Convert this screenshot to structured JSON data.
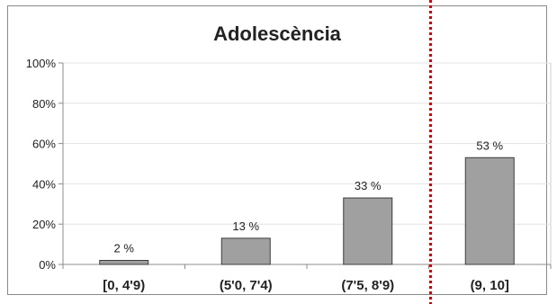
{
  "chart_data": {
    "type": "bar",
    "title": "Adolescència",
    "categories": [
      "[0, 4'9)",
      "(5'0, 7'4)",
      "(7'5, 8'9)",
      "(9, 10]"
    ],
    "values": [
      2,
      13,
      33,
      53
    ],
    "value_labels": [
      "2 %",
      "13 %",
      "33 %",
      "53 %"
    ],
    "ylim": [
      0,
      100
    ],
    "yticks": [
      0,
      20,
      40,
      60,
      80,
      100
    ],
    "ytick_labels": [
      "0%",
      "20%",
      "40%",
      "60%",
      "80%",
      "100%"
    ],
    "grid": true,
    "bar_color": "#a0a0a0",
    "bar_edge_color": "#3c3c3c",
    "divider_color": "#e00000",
    "divider_between": [
      2,
      3
    ]
  }
}
